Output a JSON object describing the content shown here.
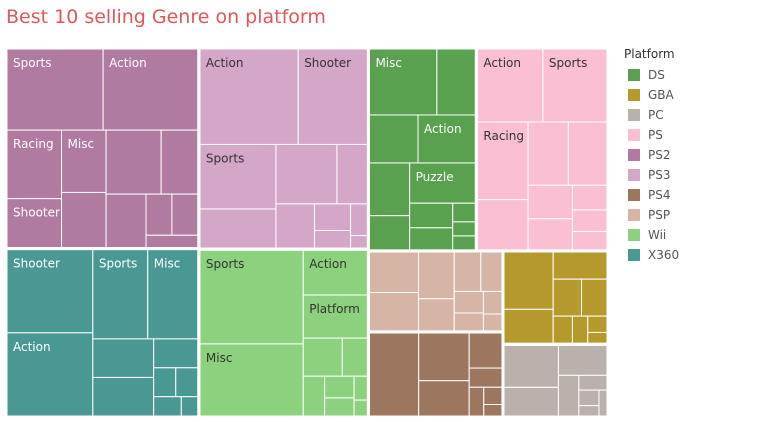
{
  "title": "Best 10 selling Genre on platform",
  "legend": {
    "title": "Platform",
    "items": [
      {
        "label": "DS",
        "color": "#59a14f"
      },
      {
        "label": "GBA",
        "color": "#b6992d"
      },
      {
        "label": "PC",
        "color": "#bab0ac"
      },
      {
        "label": "PS",
        "color": "#fabfd2"
      },
      {
        "label": "PS2",
        "color": "#b07aa1"
      },
      {
        "label": "PS3",
        "color": "#d4a6c8"
      },
      {
        "label": "PS4",
        "color": "#9d7660"
      },
      {
        "label": "PSP",
        "color": "#d7b5a6"
      },
      {
        "label": "Wii",
        "color": "#8cd17d"
      },
      {
        "label": "X360",
        "color": "#499894"
      }
    ]
  },
  "chart_data": {
    "type": "treemap",
    "title": "Best 10 selling Genre on platform",
    "legend_title": "Platform",
    "legend_position": "right",
    "groups": [
      {
        "platform": "PS2",
        "color": "#b07aa1",
        "text": "#ffffff",
        "tiles": [
          {
            "label": "Sports",
            "size": 7.3
          },
          {
            "label": "Action",
            "size": 7.2
          },
          {
            "label": "Racing",
            "size": 3.5
          },
          {
            "label": "Shooter",
            "size": 2.5
          },
          {
            "label": "Misc",
            "size": 2.6
          },
          {
            "label": "",
            "size": 2.3
          },
          {
            "label": "",
            "size": 3.3
          },
          {
            "label": "",
            "size": 2.2
          },
          {
            "label": "",
            "size": 2.0
          },
          {
            "label": "",
            "size": 1.0
          },
          {
            "label": "",
            "size": 1.0
          },
          {
            "label": "",
            "size": 0.6
          }
        ]
      },
      {
        "platform": "X360",
        "color": "#499894",
        "text": "#ffffff",
        "tiles": [
          {
            "label": "Shooter",
            "size": 6.7
          },
          {
            "label": "Action",
            "size": 6.7
          },
          {
            "label": "Sports",
            "size": 4.6
          },
          {
            "label": "Misc",
            "size": 4.2
          },
          {
            "label": "",
            "size": 2.2
          },
          {
            "label": "",
            "size": 2.2
          },
          {
            "label": "",
            "size": 1.2
          },
          {
            "label": "",
            "size": 0.6
          },
          {
            "label": "",
            "size": 0.6
          },
          {
            "label": "",
            "size": 0.5
          },
          {
            "label": "",
            "size": 0.3
          }
        ]
      },
      {
        "platform": "PS3",
        "color": "#d4a6c8",
        "text": "#333333",
        "tiles": [
          {
            "label": "Action",
            "size": 8.8
          },
          {
            "label": "Shooter",
            "size": 6.2
          },
          {
            "label": "Sports",
            "size": 4.6
          },
          {
            "label": "",
            "size": 2.8
          },
          {
            "label": "",
            "size": 3.4
          },
          {
            "label": "",
            "size": 1.7
          },
          {
            "label": "",
            "size": 1.6
          },
          {
            "label": "",
            "size": 0.9
          },
          {
            "label": "",
            "size": 0.6
          },
          {
            "label": "",
            "size": 0.5
          },
          {
            "label": "",
            "size": 0.2
          }
        ]
      },
      {
        "platform": "Wii",
        "color": "#8cd17d",
        "text": "#333333",
        "tiles": [
          {
            "label": "Sports",
            "size": 9.1
          },
          {
            "label": "Misc",
            "size": 7.0
          },
          {
            "label": "Action",
            "size": 2.7
          },
          {
            "label": "Platform",
            "size": 2.6
          },
          {
            "label": "",
            "size": 1.4
          },
          {
            "label": "",
            "size": 0.9
          },
          {
            "label": "",
            "size": 0.8
          },
          {
            "label": "",
            "size": 0.6
          },
          {
            "label": "",
            "size": 0.5
          },
          {
            "label": "",
            "size": 0.3
          },
          {
            "label": "",
            "size": 0.2
          }
        ]
      },
      {
        "platform": "DS",
        "color": "#59a14f",
        "text": "#ffffff",
        "tiles": [
          {
            "label": "Misc",
            "size": 4.2
          },
          {
            "label": "",
            "size": 2.4
          },
          {
            "label": "",
            "size": 2.2
          },
          {
            "label": "Action",
            "size": 2.6
          },
          {
            "label": "",
            "size": 2.0
          },
          {
            "label": "",
            "size": 1.3
          },
          {
            "label": "Puzzle",
            "size": 2.5
          },
          {
            "label": "",
            "size": 1.0
          },
          {
            "label": "",
            "size": 0.9
          },
          {
            "label": "",
            "size": 0.4
          },
          {
            "label": "",
            "size": 0.3
          },
          {
            "label": "",
            "size": 0.3
          }
        ]
      },
      {
        "platform": "PS",
        "color": "#fabfd2",
        "text": "#333333",
        "tiles": [
          {
            "label": "Action",
            "size": 4.5
          },
          {
            "label": "Sports",
            "size": 4.4
          },
          {
            "label": "Racing",
            "size": 3.7
          },
          {
            "label": "",
            "size": 2.4
          },
          {
            "label": "",
            "size": 2.4
          },
          {
            "label": "",
            "size": 2.3
          },
          {
            "label": "",
            "size": 1.4
          },
          {
            "label": "",
            "size": 1.3
          },
          {
            "label": "",
            "size": 0.8
          },
          {
            "label": "",
            "size": 0.7
          },
          {
            "label": "",
            "size": 0.6
          }
        ]
      },
      {
        "platform": "PSP",
        "color": "#d7b5a6",
        "text": "#333333",
        "tiles": [
          {
            "label": "",
            "size": 1.9
          },
          {
            "label": "",
            "size": 1.8
          },
          {
            "label": "",
            "size": 1.6
          },
          {
            "label": "",
            "size": 1.1
          },
          {
            "label": "",
            "size": 1.0
          },
          {
            "label": "",
            "size": 0.8
          },
          {
            "label": "",
            "size": 0.6
          },
          {
            "label": "",
            "size": 0.5
          },
          {
            "label": "",
            "size": 0.4
          },
          {
            "label": "",
            "size": 0.3
          }
        ]
      },
      {
        "platform": "PS4",
        "color": "#9d7660",
        "text": "#ffffff",
        "tiles": [
          {
            "label": "",
            "size": 3.9
          },
          {
            "label": "",
            "size": 2.3
          },
          {
            "label": "",
            "size": 1.7
          },
          {
            "label": "",
            "size": 1.1
          },
          {
            "label": "",
            "size": 0.6
          },
          {
            "label": "",
            "size": 0.4
          },
          {
            "label": "",
            "size": 0.3
          },
          {
            "label": "",
            "size": 0.2
          }
        ]
      },
      {
        "platform": "GBA",
        "color": "#b6992d",
        "text": "#ffffff",
        "tiles": [
          {
            "label": "",
            "size": 2.7
          },
          {
            "label": "",
            "size": 1.6
          },
          {
            "label": "",
            "size": 1.4
          },
          {
            "label": "",
            "size": 1.0
          },
          {
            "label": "",
            "size": 0.9
          },
          {
            "label": "",
            "size": 0.5
          },
          {
            "label": "",
            "size": 0.4
          },
          {
            "label": "",
            "size": 0.3
          },
          {
            "label": "",
            "size": 0.2
          }
        ]
      },
      {
        "platform": "PC",
        "color": "#bab0ac",
        "text": "#333333",
        "tiles": [
          {
            "label": "",
            "size": 2.2
          },
          {
            "label": "",
            "size": 1.5
          },
          {
            "label": "",
            "size": 1.4
          },
          {
            "label": "",
            "size": 0.8
          },
          {
            "label": "",
            "size": 0.4
          },
          {
            "label": "",
            "size": 0.3
          },
          {
            "label": "",
            "size": 0.2
          },
          {
            "label": "",
            "size": 0.2
          }
        ]
      }
    ]
  }
}
